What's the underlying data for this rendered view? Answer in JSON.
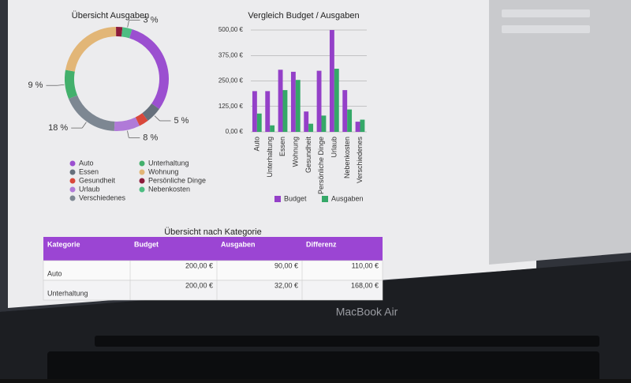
{
  "chart_data": [
    {
      "type": "donut",
      "title": "Übersicht Ausgaben",
      "categories": [
        "Auto",
        "Essen",
        "Gesundheit",
        "Urlaub",
        "Verschiedenes",
        "Unterhaltung",
        "Wohnung",
        "Persönliche Dinge",
        "Nebenkosten"
      ],
      "values": [
        30,
        5,
        3,
        8,
        18,
        9,
        22,
        2,
        3
      ],
      "value_labels": [
        null,
        "5 %",
        null,
        "8 %",
        "18 %",
        "9 %",
        null,
        null,
        "3 %"
      ],
      "colors": [
        "#9b4fd0",
        "#66707c",
        "#d9483b",
        "#b07ad8",
        "#7d8792",
        "#43b06c",
        "#e2b677",
        "#8c1c3c",
        "#4dbd82"
      ]
    },
    {
      "type": "bar",
      "title": "Vergleich Budget / Ausgaben",
      "categories": [
        "Auto",
        "Unterhaltung",
        "Essen",
        "Wohnung",
        "Gesundheit",
        "Persönliche Dinge",
        "Urlaub",
        "Nebenkosten",
        "Verschiedenes"
      ],
      "series": [
        {
          "name": "Budget",
          "color": "#9440c8",
          "values": [
            200,
            200,
            305,
            295,
            100,
            300,
            500,
            205,
            50
          ]
        },
        {
          "name": "Ausgaben",
          "color": "#35a868",
          "values": [
            90,
            32,
            205,
            255,
            40,
            80,
            310,
            110,
            60
          ]
        }
      ],
      "ylim": [
        0,
        500
      ],
      "yticks": [
        {
          "value": 0,
          "label": "0,00 €"
        },
        {
          "value": 125,
          "label": "125,00 €"
        },
        {
          "value": 250,
          "label": "250,00 €"
        },
        {
          "value": 375,
          "label": "375,00 €"
        },
        {
          "value": 500,
          "label": "500,00 €"
        }
      ],
      "grid": true
    }
  ],
  "table": {
    "title": "Übersicht nach Kategorie",
    "header": [
      "Kategorie",
      "Budget",
      "Ausgaben",
      "Differenz"
    ],
    "rows": [
      [
        "Auto",
        "200,00 €",
        "90,00 €",
        "110,00 €"
      ],
      [
        "Unterhaltung",
        "200,00 €",
        "32,00 €",
        "168,00 €"
      ]
    ]
  },
  "device_label": "MacBook Air"
}
